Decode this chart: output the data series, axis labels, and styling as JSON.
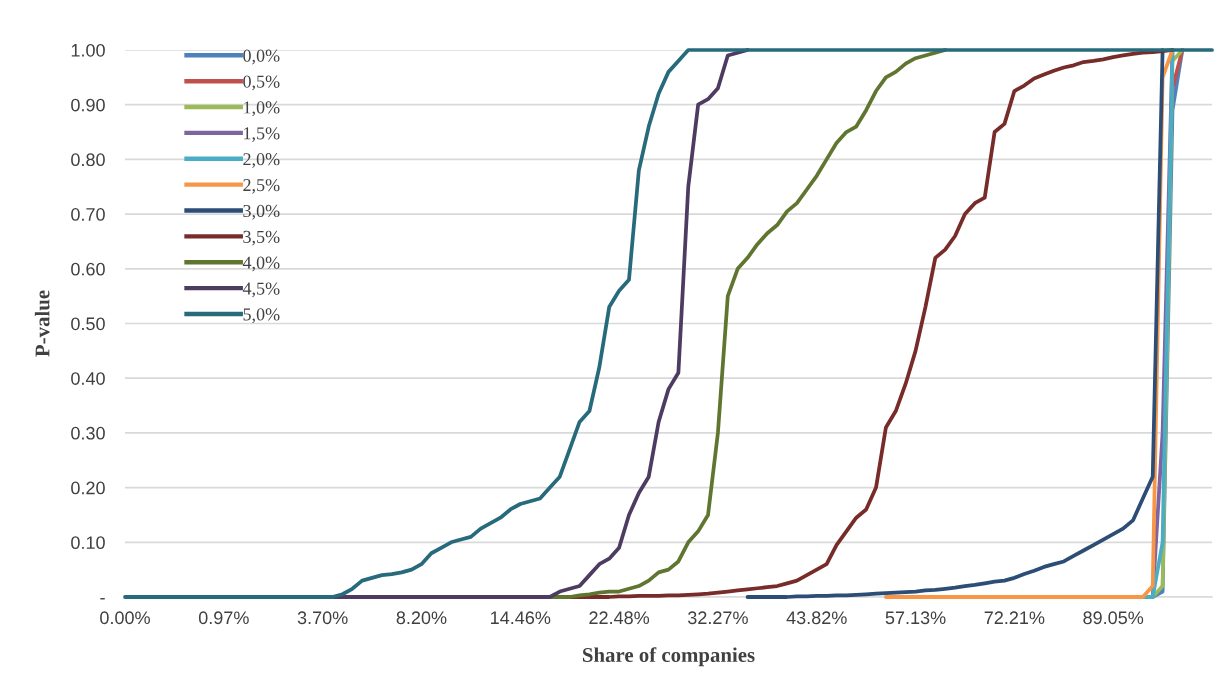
{
  "chart_data": {
    "type": "line",
    "xlabel": "Share of companies",
    "ylabel": "P-value",
    "categories": [
      "0.00%",
      null,
      null,
      null,
      null,
      null,
      null,
      null,
      null,
      null,
      "0.97%",
      null,
      null,
      null,
      null,
      null,
      null,
      null,
      null,
      null,
      "3.70%",
      null,
      null,
      null,
      null,
      null,
      null,
      null,
      null,
      null,
      "8.20%",
      null,
      null,
      null,
      null,
      null,
      null,
      null,
      null,
      null,
      "14.46%",
      null,
      null,
      null,
      null,
      null,
      null,
      null,
      null,
      null,
      "22.48%",
      null,
      null,
      null,
      null,
      null,
      null,
      null,
      null,
      null,
      "32.27%",
      null,
      null,
      null,
      null,
      null,
      null,
      null,
      null,
      null,
      "43.82%",
      null,
      null,
      null,
      null,
      null,
      null,
      null,
      null,
      null,
      "57.13%",
      null,
      null,
      null,
      null,
      null,
      null,
      null,
      null,
      null,
      "72.21%",
      null,
      null,
      null,
      null,
      null,
      null,
      null,
      null,
      null,
      "89.05%",
      null,
      null,
      null,
      null,
      null,
      null,
      null,
      null,
      null,
      null
    ],
    "ylim": [
      0,
      1
    ],
    "yticks": [
      {
        "value": 0,
        "label": "-"
      },
      {
        "value": 0.1,
        "label": "0.10"
      },
      {
        "value": 0.2,
        "label": "0.20"
      },
      {
        "value": 0.3,
        "label": "0.30"
      },
      {
        "value": 0.4,
        "label": "0.40"
      },
      {
        "value": 0.5,
        "label": "0.50"
      },
      {
        "value": 0.6,
        "label": "0.60"
      },
      {
        "value": 0.7,
        "label": "0.70"
      },
      {
        "value": 0.8,
        "label": "0.80"
      },
      {
        "value": 0.9,
        "label": "0.90"
      },
      {
        "value": 1,
        "label": "1.00"
      }
    ],
    "grid": "y",
    "legend": "top left",
    "marker": "none",
    "line_style": "solid",
    "series": [
      {
        "name": "0,0%",
        "color": "#4f81bd",
        "values": [
          null,
          null,
          null,
          null,
          null,
          null,
          null,
          null,
          null,
          null,
          null,
          null,
          null,
          null,
          null,
          null,
          null,
          null,
          null,
          null,
          null,
          null,
          null,
          null,
          null,
          null,
          null,
          null,
          null,
          null,
          null,
          null,
          null,
          null,
          null,
          null,
          null,
          null,
          null,
          null,
          null,
          null,
          null,
          null,
          null,
          null,
          null,
          null,
          null,
          null,
          null,
          null,
          null,
          null,
          null,
          null,
          null,
          null,
          null,
          null,
          null,
          null,
          null,
          null,
          null,
          null,
          null,
          null,
          null,
          null,
          null,
          null,
          null,
          null,
          null,
          null,
          null,
          null,
          null,
          null,
          null,
          null,
          null,
          null,
          null,
          null,
          null,
          null,
          null,
          null,
          null,
          null,
          null,
          null,
          null,
          null,
          null,
          null,
          null,
          null,
          null,
          null,
          null,
          0,
          0,
          0.01,
          0.89,
          1,
          null,
          null,
          null
        ]
      },
      {
        "name": "0,5%",
        "color": "#c0504d",
        "values": [
          null,
          null,
          null,
          null,
          null,
          null,
          null,
          null,
          null,
          null,
          null,
          null,
          null,
          null,
          null,
          null,
          null,
          null,
          null,
          null,
          null,
          null,
          null,
          null,
          null,
          null,
          null,
          null,
          null,
          null,
          null,
          null,
          null,
          null,
          null,
          null,
          null,
          null,
          null,
          null,
          null,
          null,
          null,
          null,
          null,
          null,
          null,
          null,
          null,
          null,
          null,
          null,
          null,
          null,
          null,
          null,
          null,
          null,
          null,
          null,
          null,
          null,
          null,
          null,
          null,
          null,
          null,
          null,
          null,
          null,
          null,
          null,
          null,
          null,
          null,
          null,
          null,
          null,
          null,
          null,
          null,
          null,
          null,
          null,
          null,
          null,
          null,
          null,
          null,
          null,
          null,
          null,
          null,
          null,
          null,
          null,
          null,
          null,
          null,
          null,
          null,
          null,
          null,
          null,
          null,
          null,
          0.93,
          1,
          null,
          null,
          null
        ]
      },
      {
        "name": "1,0%",
        "color": "#9bbb59",
        "values": [
          null,
          null,
          null,
          null,
          null,
          null,
          null,
          null,
          null,
          null,
          null,
          null,
          null,
          null,
          null,
          null,
          null,
          null,
          null,
          null,
          null,
          null,
          null,
          null,
          null,
          null,
          null,
          null,
          null,
          null,
          null,
          null,
          null,
          null,
          null,
          null,
          null,
          null,
          null,
          null,
          null,
          null,
          null,
          null,
          null,
          null,
          null,
          null,
          null,
          null,
          null,
          null,
          null,
          null,
          null,
          null,
          null,
          null,
          null,
          null,
          null,
          null,
          null,
          null,
          null,
          null,
          null,
          null,
          null,
          null,
          null,
          null,
          null,
          null,
          null,
          null,
          null,
          null,
          null,
          null,
          null,
          null,
          null,
          null,
          null,
          null,
          null,
          null,
          null,
          null,
          null,
          null,
          null,
          null,
          null,
          null,
          null,
          null,
          null,
          null,
          null,
          null,
          null,
          0,
          0,
          0.02,
          0.98,
          1,
          null,
          null,
          null
        ]
      },
      {
        "name": "1,5%",
        "color": "#8064a2",
        "values": [
          null,
          null,
          null,
          null,
          null,
          null,
          null,
          null,
          null,
          null,
          null,
          null,
          null,
          null,
          null,
          null,
          null,
          null,
          null,
          null,
          null,
          null,
          null,
          null,
          null,
          null,
          null,
          null,
          null,
          null,
          null,
          null,
          null,
          null,
          null,
          null,
          null,
          null,
          null,
          null,
          null,
          null,
          null,
          null,
          null,
          null,
          null,
          null,
          null,
          null,
          null,
          null,
          null,
          null,
          null,
          null,
          null,
          null,
          null,
          null,
          null,
          null,
          null,
          null,
          null,
          null,
          null,
          null,
          null,
          null,
          null,
          null,
          null,
          null,
          null,
          null,
          null,
          null,
          null,
          null,
          null,
          null,
          null,
          null,
          null,
          null,
          null,
          null,
          null,
          null,
          null,
          null,
          null,
          null,
          null,
          null,
          null,
          null,
          null,
          null,
          null,
          null,
          null,
          0,
          0,
          0.3,
          1,
          null,
          null,
          null,
          null
        ]
      },
      {
        "name": "2,0%",
        "color": "#4bacc6",
        "values": [
          null,
          null,
          null,
          null,
          null,
          null,
          null,
          null,
          null,
          null,
          null,
          null,
          null,
          null,
          null,
          null,
          null,
          null,
          null,
          null,
          null,
          null,
          null,
          null,
          null,
          null,
          null,
          null,
          null,
          null,
          null,
          null,
          null,
          null,
          null,
          null,
          null,
          null,
          null,
          null,
          null,
          null,
          null,
          null,
          null,
          null,
          null,
          null,
          null,
          null,
          null,
          null,
          null,
          null,
          null,
          null,
          null,
          null,
          null,
          null,
          null,
          null,
          null,
          null,
          null,
          null,
          null,
          null,
          null,
          null,
          null,
          null,
          null,
          null,
          null,
          null,
          null,
          null,
          null,
          null,
          null,
          null,
          null,
          null,
          null,
          null,
          null,
          null,
          null,
          null,
          null,
          null,
          null,
          null,
          null,
          null,
          null,
          null,
          null,
          null,
          null,
          null,
          null,
          0,
          0,
          0.1,
          1,
          null,
          null,
          null,
          null
        ]
      },
      {
        "name": "2,5%",
        "color": "#f79646",
        "values": [
          null,
          null,
          null,
          null,
          null,
          null,
          null,
          null,
          null,
          null,
          null,
          null,
          null,
          null,
          null,
          null,
          null,
          null,
          null,
          null,
          null,
          null,
          null,
          null,
          null,
          null,
          null,
          null,
          null,
          null,
          null,
          null,
          null,
          null,
          null,
          null,
          null,
          null,
          null,
          null,
          null,
          null,
          null,
          null,
          null,
          null,
          null,
          null,
          null,
          null,
          null,
          null,
          null,
          null,
          null,
          null,
          null,
          null,
          null,
          null,
          null,
          null,
          null,
          null,
          null,
          null,
          null,
          null,
          null,
          null,
          null,
          null,
          null,
          null,
          null,
          null,
          null,
          0,
          0,
          0,
          0,
          0,
          0,
          0,
          0,
          0,
          0,
          0,
          0,
          0,
          0,
          0,
          0,
          0,
          0,
          0,
          0,
          0,
          0,
          0,
          0,
          0,
          0,
          0,
          0.02,
          0.95,
          1,
          null,
          null,
          null,
          null
        ]
      },
      {
        "name": "3,0%",
        "color": "#2c4d75",
        "values": [
          null,
          null,
          null,
          null,
          null,
          null,
          null,
          null,
          null,
          null,
          null,
          null,
          null,
          null,
          null,
          null,
          null,
          null,
          null,
          null,
          null,
          null,
          null,
          null,
          null,
          null,
          null,
          null,
          null,
          null,
          null,
          null,
          null,
          null,
          null,
          null,
          null,
          null,
          null,
          null,
          null,
          null,
          null,
          null,
          null,
          null,
          null,
          null,
          null,
          null,
          null,
          null,
          null,
          null,
          null,
          null,
          null,
          null,
          null,
          null,
          null,
          null,
          null,
          0,
          0,
          0,
          0,
          0,
          0.001,
          0.001,
          0.002,
          0.002,
          0.003,
          0.003,
          0.004,
          0.005,
          0.006,
          0.007,
          0.008,
          0.009,
          0.01,
          0.012,
          0.013,
          0.015,
          0.017,
          0.02,
          0.022,
          0.025,
          0.028,
          0.03,
          0.035,
          0.042,
          0.048,
          0.055,
          0.06,
          0.065,
          0.075,
          0.085,
          0.095,
          0.105,
          0.115,
          0.125,
          0.14,
          0.18,
          0.22,
          1,
          null,
          null,
          null,
          null,
          null
        ]
      },
      {
        "name": "3,5%",
        "color": "#772c2a",
        "values": [
          null,
          null,
          null,
          null,
          null,
          null,
          null,
          null,
          null,
          null,
          null,
          null,
          null,
          null,
          null,
          null,
          null,
          null,
          null,
          null,
          null,
          null,
          null,
          null,
          null,
          null,
          null,
          null,
          null,
          null,
          null,
          null,
          null,
          null,
          null,
          null,
          null,
          null,
          null,
          null,
          null,
          null,
          null,
          null,
          null,
          0,
          0,
          0,
          0,
          0,
          0.001,
          0.001,
          0.002,
          0.002,
          0.002,
          0.003,
          0.003,
          0.004,
          0.005,
          0.006,
          0.008,
          0.01,
          0.012,
          0.014,
          0.016,
          0.018,
          0.02,
          0.025,
          0.03,
          0.04,
          0.05,
          0.06,
          0.095,
          0.12,
          0.145,
          0.16,
          0.2,
          0.31,
          0.34,
          0.39,
          0.45,
          0.53,
          0.62,
          0.635,
          0.66,
          0.7,
          0.72,
          0.73,
          0.85,
          0.865,
          0.925,
          0.935,
          0.948,
          0.955,
          0.962,
          0.968,
          0.972,
          0.978,
          0.98,
          0.983,
          0.987,
          0.99,
          0.993,
          0.995,
          0.996,
          0.998,
          1,
          null,
          null,
          null,
          null
        ]
      },
      {
        "name": "4,0%",
        "color": "#5f7530",
        "values": [
          null,
          null,
          null,
          null,
          null,
          null,
          null,
          null,
          null,
          null,
          null,
          null,
          null,
          null,
          null,
          null,
          null,
          null,
          null,
          null,
          null,
          null,
          null,
          null,
          null,
          null,
          null,
          null,
          null,
          null,
          null,
          null,
          null,
          null,
          null,
          null,
          null,
          null,
          null,
          null,
          null,
          null,
          null,
          0,
          0,
          0,
          0.003,
          0.005,
          0.008,
          0.01,
          0.01,
          0.015,
          0.02,
          0.03,
          0.045,
          0.05,
          0.065,
          0.1,
          0.12,
          0.15,
          0.3,
          0.55,
          0.6,
          0.62,
          0.645,
          0.665,
          0.68,
          0.705,
          0.72,
          0.745,
          0.77,
          0.8,
          0.83,
          0.85,
          0.86,
          0.89,
          0.925,
          0.95,
          0.96,
          0.975,
          0.985,
          0.99,
          0.995,
          1,
          null,
          null,
          null,
          null,
          null,
          null,
          null,
          null,
          null,
          null,
          null,
          null,
          null,
          null,
          null,
          null,
          null,
          null,
          null,
          null,
          null,
          null,
          null,
          null,
          null,
          null,
          null
        ]
      },
      {
        "name": "4,5%",
        "color": "#4d3b62",
        "values": [
          null,
          null,
          null,
          null,
          null,
          null,
          null,
          null,
          null,
          null,
          null,
          null,
          null,
          null,
          null,
          null,
          null,
          null,
          null,
          null,
          null,
          0,
          0,
          0,
          0,
          0,
          0,
          0,
          0,
          0,
          0,
          0,
          0,
          0,
          0,
          0,
          0,
          0,
          0,
          0,
          0,
          0,
          0,
          0,
          0.01,
          0.015,
          0.02,
          0.04,
          0.06,
          0.07,
          0.09,
          0.15,
          0.19,
          0.22,
          0.32,
          0.38,
          0.41,
          0.75,
          0.9,
          0.91,
          0.93,
          0.99,
          0.995,
          1,
          null,
          null,
          null,
          null,
          null,
          null,
          null,
          null,
          null,
          null,
          null,
          null,
          null,
          null,
          null,
          null,
          null,
          null,
          null,
          null,
          null,
          null,
          null,
          null,
          null,
          null,
          null,
          null,
          null,
          null,
          null,
          null,
          null,
          null,
          null,
          null,
          null,
          null,
          null,
          null,
          null,
          null,
          null,
          null,
          null,
          null,
          null
        ]
      },
      {
        "name": "5,0%",
        "color": "#276a7c",
        "values": [
          0,
          0,
          0,
          0,
          0,
          0,
          0,
          0,
          0,
          0,
          0,
          0,
          0,
          0,
          0,
          0,
          0,
          0,
          0,
          0,
          0,
          0,
          0.005,
          0.015,
          0.03,
          0.035,
          0.04,
          0.042,
          0.045,
          0.05,
          0.06,
          0.08,
          0.09,
          0.1,
          0.105,
          0.11,
          0.125,
          0.135,
          0.145,
          0.16,
          0.17,
          0.175,
          0.18,
          0.2,
          0.22,
          0.27,
          0.32,
          0.34,
          0.42,
          0.53,
          0.56,
          0.58,
          0.78,
          0.86,
          0.92,
          0.96,
          0.98,
          1,
          1,
          1,
          1,
          1,
          1,
          1,
          1,
          1,
          1,
          1,
          1,
          1,
          1,
          1,
          1,
          1,
          1,
          1,
          1,
          1,
          1,
          1,
          1,
          1,
          1,
          1,
          1,
          1,
          1,
          1,
          1,
          1,
          1,
          1,
          1,
          1,
          1,
          1,
          1,
          1,
          1,
          1,
          1,
          1,
          1,
          1,
          1,
          1,
          1,
          1,
          1,
          1,
          1
        ]
      }
    ]
  }
}
